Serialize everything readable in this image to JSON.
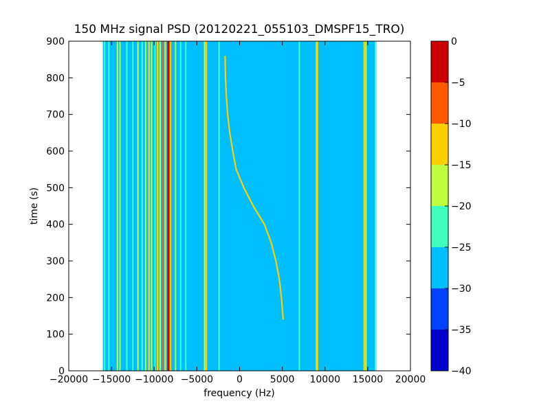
{
  "chart_data": {
    "type": "heatmap",
    "title": "150 MHz signal PSD (20120221_055103_DMSPF15_TRO)",
    "xlabel": "frequency (Hz)",
    "ylabel": "time (s)",
    "xlim": [
      -20000,
      20000
    ],
    "ylim": [
      0,
      900
    ],
    "xticks": [
      -20000,
      -15000,
      -10000,
      -5000,
      0,
      5000,
      10000,
      15000,
      20000
    ],
    "xtick_labels": [
      "−20000",
      "−15000",
      "−10000",
      "−5000",
      "0",
      "5000",
      "10000",
      "15000",
      "20000"
    ],
    "yticks": [
      0,
      100,
      200,
      300,
      400,
      500,
      600,
      700,
      800,
      900
    ],
    "ytick_labels": [
      "0",
      "100",
      "200",
      "300",
      "400",
      "500",
      "600",
      "700",
      "800",
      "900"
    ],
    "data_extent_x": [
      -16000,
      16000
    ],
    "background_level": -27.5,
    "colorbar": {
      "levels": [
        -40,
        -35,
        -30,
        -25,
        -20,
        -15,
        -10,
        -5,
        0
      ],
      "tick_labels": [
        "−40",
        "−35",
        "−30",
        "−25",
        "−20",
        "−15",
        "−10",
        "−5",
        "0"
      ],
      "colors": [
        "#0000cd",
        "#0040ff",
        "#00bfff",
        "#40ffbf",
        "#bfff40",
        "#ffcf00",
        "#ff5a00",
        "#cd0000"
      ]
    },
    "vertical_lines": [
      {
        "freq": -15800,
        "level": -22.5
      },
      {
        "freq": -15300,
        "level": -22.5
      },
      {
        "freq": -14300,
        "level": -17.5
      },
      {
        "freq": -14000,
        "level": -17.5
      },
      {
        "freq": -13200,
        "level": -22.5
      },
      {
        "freq": -12500,
        "level": -22.5
      },
      {
        "freq": -11900,
        "level": -17.5
      },
      {
        "freq": -11400,
        "level": -22.5
      },
      {
        "freq": -11000,
        "level": -17.5
      },
      {
        "freq": -10600,
        "level": -12.5
      },
      {
        "freq": -10300,
        "level": -17.5
      },
      {
        "freq": -9900,
        "level": -22.5
      },
      {
        "freq": -9600,
        "level": -12.5
      },
      {
        "freq": -9300,
        "level": -17.5
      },
      {
        "freq": -9000,
        "level": -7.5
      },
      {
        "freq": -8700,
        "level": -12.5
      },
      {
        "freq": -8300,
        "level": -2.5
      },
      {
        "freq": -8100,
        "level": -12.5
      },
      {
        "freq": -7500,
        "level": -17.5
      },
      {
        "freq": -6900,
        "level": -22.5
      },
      {
        "freq": -6300,
        "level": -22.5
      },
      {
        "freq": -4100,
        "level": -17.5
      },
      {
        "freq": -3900,
        "level": -12.5
      },
      {
        "freq": -2400,
        "level": -22.5
      },
      {
        "freq": 7000,
        "level": -22.5
      },
      {
        "freq": 9000,
        "level": -17.5
      },
      {
        "freq": 9100,
        "level": -12.5
      },
      {
        "freq": 14600,
        "level": -12.5
      },
      {
        "freq": 14800,
        "level": -17.5
      },
      {
        "freq": 15900,
        "level": -22.5
      }
    ],
    "doppler_curve": {
      "level": -12.5,
      "points": [
        {
          "time": 140,
          "freq": 5100
        },
        {
          "time": 200,
          "freq": 4900
        },
        {
          "time": 250,
          "freq": 4650
        },
        {
          "time": 300,
          "freq": 4250
        },
        {
          "time": 350,
          "freq": 3700
        },
        {
          "time": 400,
          "freq": 2900
        },
        {
          "time": 450,
          "freq": 1600
        },
        {
          "time": 500,
          "freq": 500
        },
        {
          "time": 550,
          "freq": -400
        },
        {
          "time": 600,
          "freq": -800
        },
        {
          "time": 650,
          "freq": -1150
        },
        {
          "time": 700,
          "freq": -1400
        },
        {
          "time": 750,
          "freq": -1550
        },
        {
          "time": 800,
          "freq": -1650
        },
        {
          "time": 860,
          "freq": -1700
        }
      ]
    }
  }
}
